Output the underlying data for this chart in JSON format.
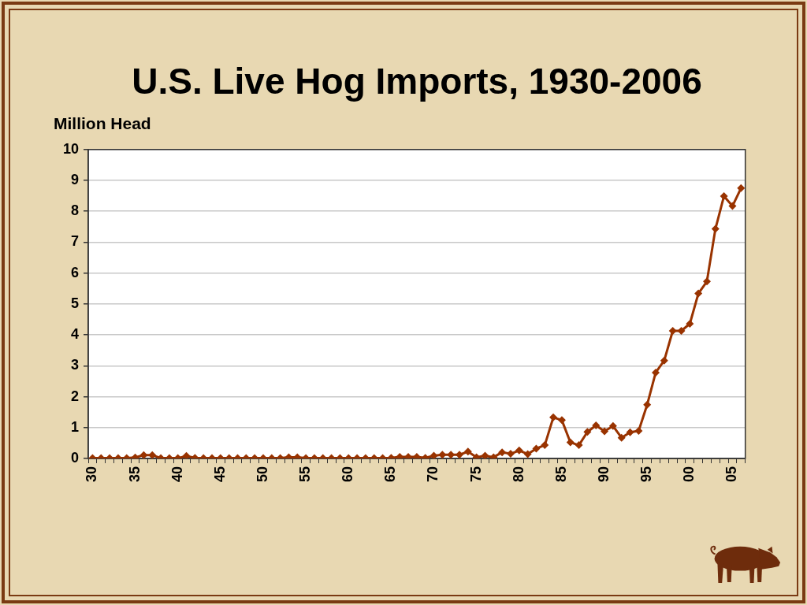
{
  "chart_data": {
    "type": "line",
    "title": "U.S. Live Hog Imports, 1930-2006",
    "ylabel": "Million Head",
    "categories": [
      "30",
      null,
      null,
      null,
      null,
      "35",
      null,
      null,
      null,
      null,
      "40",
      null,
      null,
      null,
      null,
      "45",
      null,
      null,
      null,
      null,
      "50",
      null,
      null,
      null,
      null,
      "55",
      null,
      null,
      null,
      null,
      "60",
      null,
      null,
      null,
      null,
      "65",
      null,
      null,
      null,
      null,
      "70",
      null,
      null,
      null,
      null,
      "75",
      null,
      null,
      null,
      null,
      "80",
      null,
      null,
      null,
      null,
      "85",
      null,
      null,
      null,
      null,
      "90",
      null,
      null,
      null,
      null,
      "95",
      null,
      null,
      null,
      null,
      "00",
      null,
      null,
      null,
      null,
      "05",
      null
    ],
    "series": [
      {
        "color": "#993300",
        "values": [
          0.01,
          0.01,
          0.01,
          0.01,
          0.01,
          0.03,
          0.11,
          0.11,
          0.01,
          0.01,
          0.01,
          0.08,
          0.02,
          0.01,
          0.01,
          0.01,
          0.01,
          0.01,
          0.01,
          0.01,
          0.01,
          0.01,
          0.01,
          0.04,
          0.04,
          0.01,
          0.01,
          0.01,
          0.01,
          0.01,
          0.01,
          0.01,
          0.01,
          0.01,
          0.01,
          0.02,
          0.05,
          0.05,
          0.05,
          0.02,
          0.09,
          0.12,
          0.12,
          0.12,
          0.22,
          0.04,
          0.09,
          0.04,
          0.2,
          0.15,
          0.26,
          0.14,
          0.32,
          0.43,
          1.33,
          1.24,
          0.52,
          0.43,
          0.86,
          1.07,
          0.88,
          1.05,
          0.67,
          0.85,
          0.89,
          1.74,
          2.78,
          3.17,
          4.13,
          4.13,
          4.36,
          5.34,
          5.73,
          7.43,
          8.49,
          8.17,
          8.75
        ]
      }
    ],
    "ylim": [
      0,
      10
    ],
    "yticks": [
      0,
      1,
      2,
      3,
      4,
      5,
      6,
      7,
      8,
      9,
      10
    ],
    "grid": "y",
    "marker": "diamond",
    "line_style": "solid"
  }
}
